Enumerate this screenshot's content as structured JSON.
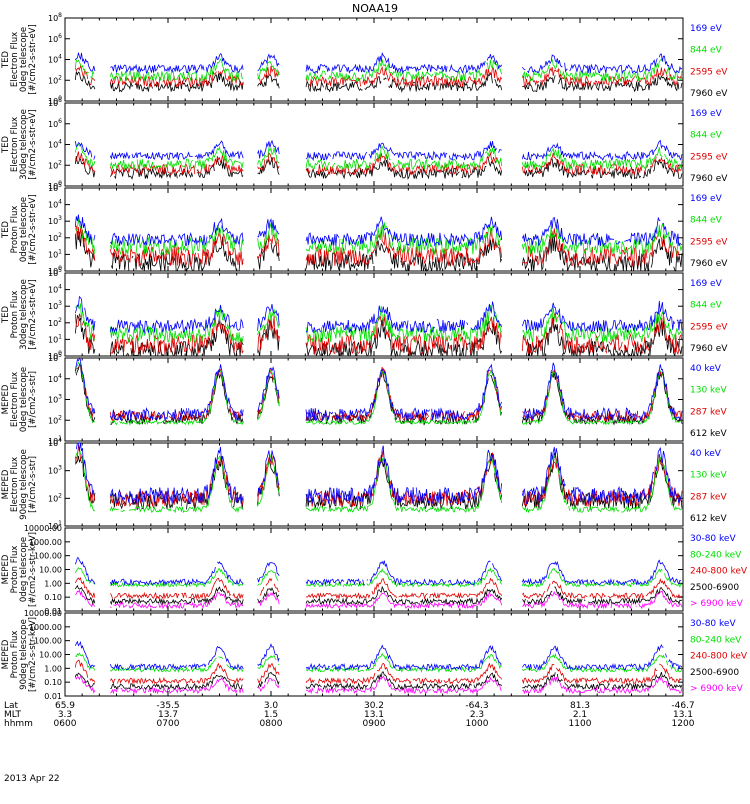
{
  "chart_data": {
    "type": "line",
    "title": "NOAA19",
    "date_label": "2013 Apr 22",
    "colors": {
      "black": "#000000",
      "red": "#e00000",
      "green": "#00e000",
      "blue": "#0000ff",
      "magenta": "#ff00ff"
    },
    "time_axis": {
      "rows": [
        "Lat",
        "MLT",
        "hhmm"
      ],
      "ticks": [
        {
          "hhmm": "0600",
          "lat": "65.9",
          "mlt": "3.3"
        },
        {
          "hhmm": "0700",
          "lat": "-35.5",
          "mlt": "13.7"
        },
        {
          "hhmm": "0800",
          "lat": "3.0",
          "mlt": "1.5"
        },
        {
          "hhmm": "0900",
          "lat": "30.2",
          "mlt": "13.1"
        },
        {
          "hhmm": "1000",
          "lat": "-64.3",
          "mlt": "2.3"
        },
        {
          "hhmm": "1100",
          "lat": "81.3",
          "mlt": "2.1"
        },
        {
          "hhmm": "1200",
          "lat": "-46.7",
          "mlt": "13.1"
        }
      ]
    },
    "panels": [
      {
        "ylabel": [
          "TED",
          "Electron Flux",
          "0deg telescope",
          "[#/cm2-s-str-eV]"
        ],
        "log": true,
        "ylim_exp": [
          0,
          8
        ],
        "tick_exps": [
          0,
          2,
          4,
          6,
          8
        ],
        "series": [
          {
            "name": "7960 eV",
            "color": "black",
            "base": 1.4,
            "peak": 2.4,
            "noise": 0.5
          },
          {
            "name": "2595 eV",
            "color": "red",
            "base": 1.9,
            "peak": 3.1,
            "noise": 0.5
          },
          {
            "name": "844 eV",
            "color": "green",
            "base": 2.4,
            "peak": 3.8,
            "noise": 0.5
          },
          {
            "name": "169 eV",
            "color": "blue",
            "base": 3.1,
            "peak": 4.4,
            "noise": 0.4
          }
        ]
      },
      {
        "ylabel": [
          "TED",
          "Electron Flux",
          "30deg telescope",
          "[#/cm2-s-str-eV]"
        ],
        "log": true,
        "ylim_exp": [
          0,
          8
        ],
        "tick_exps": [
          0,
          2,
          4,
          6,
          8
        ],
        "series": [
          {
            "name": "7960 eV",
            "color": "black",
            "base": 1.2,
            "peak": 2.5,
            "noise": 0.5
          },
          {
            "name": "2595 eV",
            "color": "red",
            "base": 1.6,
            "peak": 3.0,
            "noise": 0.5
          },
          {
            "name": "844 eV",
            "color": "green",
            "base": 2.1,
            "peak": 3.6,
            "noise": 0.5
          },
          {
            "name": "169 eV",
            "color": "blue",
            "base": 2.9,
            "peak": 4.2,
            "noise": 0.4
          }
        ]
      },
      {
        "ylabel": [
          "TED",
          "Proton Flux",
          "0deg telescope",
          "[#/cm2-s-str-eV]"
        ],
        "log": true,
        "ylim_exp": [
          0,
          5
        ],
        "tick_exps": [
          0,
          1,
          2,
          3,
          4,
          5
        ],
        "series": [
          {
            "name": "7960 eV",
            "color": "black",
            "base": 0.5,
            "peak": 2.0,
            "noise": 0.6
          },
          {
            "name": "2595 eV",
            "color": "red",
            "base": 0.9,
            "peak": 2.3,
            "noise": 0.6
          },
          {
            "name": "844 eV",
            "color": "green",
            "base": 1.5,
            "peak": 2.7,
            "noise": 0.5
          },
          {
            "name": "169 eV",
            "color": "blue",
            "base": 1.9,
            "peak": 3.1,
            "noise": 0.4
          }
        ]
      },
      {
        "ylabel": [
          "TED",
          "Proton Flux",
          "30deg telescope",
          "[#/cm2-s-str-eV]"
        ],
        "log": true,
        "ylim_exp": [
          0,
          5
        ],
        "tick_exps": [
          0,
          1,
          2,
          3,
          4,
          5
        ],
        "series": [
          {
            "name": "7960 eV",
            "color": "black",
            "base": 0.3,
            "peak": 2.0,
            "noise": 0.6
          },
          {
            "name": "2595 eV",
            "color": "red",
            "base": 0.7,
            "peak": 2.4,
            "noise": 0.6
          },
          {
            "name": "844 eV",
            "color": "green",
            "base": 1.3,
            "peak": 2.8,
            "noise": 0.5
          },
          {
            "name": "169 eV",
            "color": "blue",
            "base": 1.8,
            "peak": 3.2,
            "noise": 0.4
          }
        ]
      },
      {
        "ylabel": [
          "MEPED",
          "Electron Flux",
          "0deg telescope",
          "[#/cm2-s-str]"
        ],
        "log": true,
        "ylim_exp": [
          1,
          5
        ],
        "tick_exps": [
          1,
          2,
          3,
          4,
          5
        ],
        "series": [
          {
            "name": "612 keV",
            "color": "black",
            "base": 2.05,
            "peak": 4.6,
            "noise": 0.25
          },
          {
            "name": "287 keV",
            "color": "red",
            "base": 2.2,
            "peak": 4.7,
            "noise": 0.25
          },
          {
            "name": "130 keV",
            "color": "green",
            "base": 1.9,
            "peak": 4.8,
            "noise": 0.1
          },
          {
            "name": "40 keV",
            "color": "blue",
            "base": 2.3,
            "peak": 4.9,
            "noise": 0.3
          }
        ]
      },
      {
        "ylabel": [
          "MEPED",
          "Electron Flux",
          "90deg telescope",
          "[#/cm2-s-str]"
        ],
        "log": true,
        "ylim_exp": [
          1,
          4
        ],
        "tick_exps": [
          1,
          2,
          3,
          4
        ],
        "series": [
          {
            "name": "612 keV",
            "color": "black",
            "base": 1.9,
            "peak": 3.6,
            "noise": 0.3
          },
          {
            "name": "287 keV",
            "color": "red",
            "base": 2.0,
            "peak": 3.7,
            "noise": 0.3
          },
          {
            "name": "130 keV",
            "color": "green",
            "base": 1.6,
            "peak": 3.8,
            "noise": 0.1
          },
          {
            "name": "40 keV",
            "color": "blue",
            "base": 2.1,
            "peak": 3.9,
            "noise": 0.3
          }
        ]
      },
      {
        "ylabel": [
          "MEPED",
          "Proton Flux",
          "0deg telescope",
          "[#/cm2-s-str-keV]"
        ],
        "log": true,
        "ylim_exp": [
          -2,
          4
        ],
        "tick_exps": [
          -2,
          -1,
          0,
          1,
          2,
          3,
          4
        ],
        "tick_labels": [
          "0.01",
          "0.10",
          "1.00",
          "10.00",
          "100.00",
          "1000.00",
          "10000.00"
        ],
        "series": [
          {
            "name": "> 6900 keV",
            "color": "magenta",
            "base": -1.6,
            "peak": -0.6,
            "noise": 0.2
          },
          {
            "name": "2500-6900",
            "color": "black",
            "base": -1.3,
            "peak": -0.3,
            "noise": 0.2
          },
          {
            "name": "240-800 keV",
            "color": "red",
            "base": -0.9,
            "peak": 0.4,
            "noise": 0.2
          },
          {
            "name": "80-240 keV",
            "color": "green",
            "base": -0.1,
            "peak": 1.1,
            "noise": 0.15
          },
          {
            "name": "30-80 keV",
            "color": "blue",
            "base": 0.1,
            "peak": 1.8,
            "noise": 0.2
          }
        ]
      },
      {
        "ylabel": [
          "MEPED",
          "Proton Flux",
          "90deg telescope",
          "[#/cm2-s-str-keV]"
        ],
        "log": true,
        "ylim_exp": [
          -2,
          4
        ],
        "tick_exps": [
          -2,
          -1,
          0,
          1,
          2,
          3,
          4
        ],
        "tick_labels": [
          "0.01",
          "0.10",
          "1.00",
          "10.00",
          "100.00",
          "1000.00",
          "10000.00"
        ],
        "series": [
          {
            "name": "> 6900 keV",
            "color": "magenta",
            "base": -1.6,
            "peak": -0.6,
            "noise": 0.2
          },
          {
            "name": "2500-6900",
            "color": "black",
            "base": -1.3,
            "peak": -0.3,
            "noise": 0.2
          },
          {
            "name": "240-800 keV",
            "color": "red",
            "base": -0.9,
            "peak": 0.4,
            "noise": 0.2
          },
          {
            "name": "80-240 keV",
            "color": "green",
            "base": -0.1,
            "peak": 1.1,
            "noise": 0.15
          },
          {
            "name": "30-80 keV",
            "color": "blue",
            "base": 0.1,
            "peak": 1.8,
            "noise": 0.2
          }
        ]
      }
    ],
    "radiation_belt_passes_hhmm": [
      "0608",
      "0730",
      "0800",
      "0905",
      "1008",
      "1045",
      "1147"
    ],
    "grid": false,
    "legend": "right"
  }
}
